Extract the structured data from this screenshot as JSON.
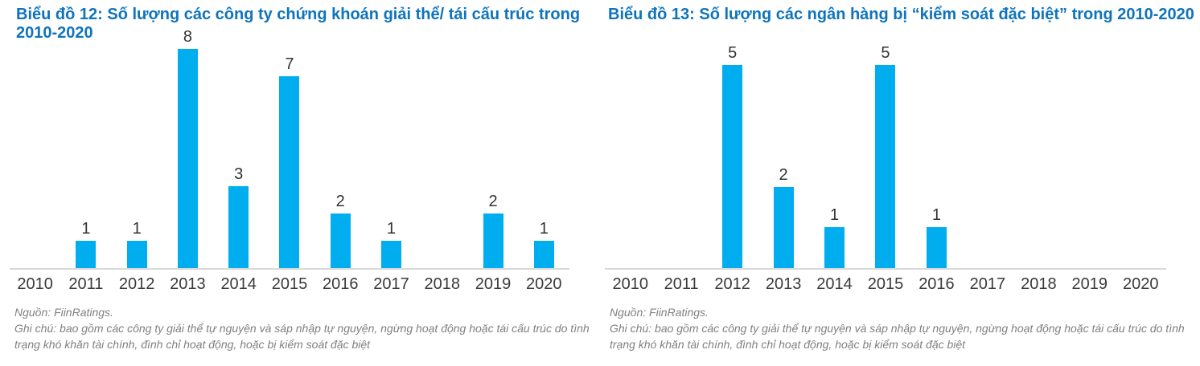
{
  "page": {
    "background": "#ffffff"
  },
  "styles": {
    "title_color": "#0F74BC",
    "bar_color": "#00AEEF",
    "axis_line_color": "#D9D9D9",
    "axis_label_color": "#3A3A3A",
    "value_label_color": "#333333",
    "note_color": "#808080"
  },
  "chart_data": [
    {
      "type": "bar",
      "title": "Biểu đồ 12: Số lượng các công ty chứng khoán giải thể/ tái cấu trúc trong 2010-2020",
      "categories": [
        "2010",
        "2011",
        "2012",
        "2013",
        "2014",
        "2015",
        "2016",
        "2017",
        "2018",
        "2019",
        "2020"
      ],
      "values": [
        0,
        1,
        1,
        8,
        3,
        7,
        2,
        1,
        0,
        2,
        1
      ],
      "ylim": [
        0,
        8
      ],
      "bar_color": "#00AEEF",
      "xlabel": "",
      "ylabel": "",
      "grid": false,
      "legend": "none",
      "source": "Nguồn: FiinRatings.",
      "note": "Ghi chú: bao gồm các công ty giải thể tự nguyện và sáp nhập tự nguyện, ngừng hoạt động hoặc tái cấu trúc do tình trạng khó khăn tài chính, đình chỉ hoạt động, hoặc bị kiểm soát đặc biệt"
    },
    {
      "type": "bar",
      "title": "Biểu đồ 13: Số lượng các ngân hàng bị “kiểm soát đặc biệt” trong 2010-2020",
      "categories": [
        "2010",
        "2011",
        "2012",
        "2013",
        "2014",
        "2015",
        "2016",
        "2017",
        "2018",
        "2019",
        "2020"
      ],
      "values": [
        0,
        0,
        5,
        2,
        1,
        5,
        1,
        0,
        0,
        0,
        0
      ],
      "ylim": [
        0,
        5
      ],
      "bar_color": "#00AEEF",
      "xlabel": "",
      "ylabel": "",
      "grid": false,
      "legend": "none",
      "source": "Nguồn: FiinRatings.",
      "note": "Ghi chú: bao gồm các công ty giải thể tự nguyện và sáp nhập tự nguyện, ngừng hoạt động hoặc tái cấu trúc do tình trạng khó khăn tài chính, đình chỉ hoạt động, hoặc bị kiểm soát đặc biệt"
    }
  ]
}
